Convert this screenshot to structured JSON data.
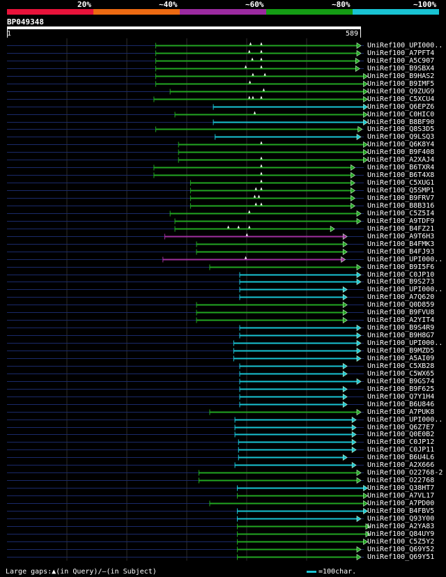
{
  "legend": {
    "segments": [
      {
        "label": "20%",
        "color": "#e8133a"
      },
      {
        "label": "~40%",
        "color": "#ec6a12"
      },
      {
        "label": "~60%",
        "color": "#9b2aa0"
      },
      {
        "label": "~80%",
        "color": "#149c14"
      },
      {
        "label": "~100%",
        "color": "#19c3d3"
      }
    ]
  },
  "query": {
    "id": "BP049348",
    "start": "1",
    "end": "589",
    "length": 589
  },
  "colors": {
    "green": "#22a622",
    "cyan": "#19c3d3",
    "purple": "#a030a0",
    "guide": "#1a2a6a",
    "grid": "#2b2b2b"
  },
  "hits": [
    {
      "name": "UniRef100_UPI000..",
      "start": 248,
      "end": 589,
      "color": "green",
      "gaps": [
        406,
        424
      ]
    },
    {
      "name": "UniRef100_A7PFT4",
      "start": 248,
      "end": 589,
      "color": "green",
      "gaps": [
        404,
        424
      ]
    },
    {
      "name": "UniRef100_A5C907",
      "start": 248,
      "end": 587,
      "color": "green",
      "gaps": [
        409,
        424
      ]
    },
    {
      "name": "UniRef100_B9SBX4",
      "start": 248,
      "end": 587,
      "color": "green",
      "gaps": [
        398,
        424
      ]
    },
    {
      "name": "UniRef100_B9HAS2",
      "start": 248,
      "end": 600,
      "color": "green",
      "gaps": [
        410,
        430
      ]
    },
    {
      "name": "UniRef100_B9IMF5",
      "start": 248,
      "end": 600,
      "color": "green",
      "gaps": [
        405
      ]
    },
    {
      "name": "UniRef100_Q9ZUG9",
      "start": 272,
      "end": 600,
      "color": "green",
      "gaps": [
        428
      ]
    },
    {
      "name": "UniRef100_C5XCU4",
      "start": 245,
      "end": 600,
      "color": "green",
      "gaps": [
        404,
        410,
        424
      ]
    },
    {
      "name": "UniRef100_Q6EPZ6",
      "start": 344,
      "end": 600,
      "color": "cyan",
      "gaps": []
    },
    {
      "name": "UniRef100_C0HIC0",
      "start": 280,
      "end": 600,
      "color": "green",
      "gaps": [
        413
      ]
    },
    {
      "name": "UniRef100_B8BF90",
      "start": 344,
      "end": 600,
      "color": "cyan",
      "gaps": []
    },
    {
      "name": "UniRef100_Q8S3D5",
      "start": 248,
      "end": 591,
      "color": "green",
      "gaps": []
    },
    {
      "name": "UniRef100_Q9LSQ3",
      "start": 347,
      "end": 589,
      "color": "cyan",
      "gaps": []
    },
    {
      "name": "UniRef100_Q6K8Y4",
      "start": 286,
      "end": 600,
      "color": "green",
      "gaps": [
        424
      ]
    },
    {
      "name": "UniRef100_B9F408",
      "start": 286,
      "end": 600,
      "color": "green",
      "gaps": []
    },
    {
      "name": "UniRef100_A2XAJ4",
      "start": 286,
      "end": 600,
      "color": "green",
      "gaps": [
        424
      ]
    },
    {
      "name": "UniRef100_B6TXR4",
      "start": 245,
      "end": 579,
      "color": "green",
      "gaps": [
        424
      ]
    },
    {
      "name": "UniRef100_B6T4X8",
      "start": 245,
      "end": 579,
      "color": "green",
      "gaps": [
        424
      ]
    },
    {
      "name": "UniRef100_C5XUG1",
      "start": 306,
      "end": 579,
      "color": "green",
      "gaps": [
        424
      ]
    },
    {
      "name": "UniRef100_Q5SMP1",
      "start": 306,
      "end": 579,
      "color": "green",
      "gaps": [
        415,
        424
      ]
    },
    {
      "name": "UniRef100_B9FRV7",
      "start": 306,
      "end": 579,
      "color": "green",
      "gaps": [
        413,
        420
      ]
    },
    {
      "name": "UniRef100_B8B316",
      "start": 306,
      "end": 579,
      "color": "green",
      "gaps": [
        415,
        424
      ]
    },
    {
      "name": "UniRef100_C5Z5I4",
      "start": 272,
      "end": 589,
      "color": "green",
      "gaps": [
        404
      ]
    },
    {
      "name": "UniRef100_A9TDF9",
      "start": 280,
      "end": 589,
      "color": "green",
      "gaps": []
    },
    {
      "name": "UniRef100_B4FZ21",
      "start": 280,
      "end": 545,
      "color": "green",
      "gaps": [
        369,
        386,
        404
      ]
    },
    {
      "name": "UniRef100_A9T6H3",
      "start": 263,
      "end": 566,
      "color": "purple",
      "gaps": [
        400
      ]
    },
    {
      "name": "UniRef100_B4FMK3",
      "start": 316,
      "end": 566,
      "color": "green",
      "gaps": []
    },
    {
      "name": "UniRef100_B4FJ93",
      "start": 316,
      "end": 566,
      "color": "green",
      "gaps": []
    },
    {
      "name": "UniRef100_UPI000..",
      "start": 260,
      "end": 563,
      "color": "purple",
      "gaps": [
        398
      ]
    },
    {
      "name": "UniRef100_B9I5F6",
      "start": 338,
      "end": 589,
      "color": "green",
      "gaps": []
    },
    {
      "name": "UniRef100_C0JP10",
      "start": 388,
      "end": 589,
      "color": "cyan",
      "gaps": []
    },
    {
      "name": "UniRef100_B9S273",
      "start": 388,
      "end": 589,
      "color": "cyan",
      "gaps": []
    },
    {
      "name": "UniRef100_UPI000..",
      "start": 388,
      "end": 566,
      "color": "cyan",
      "gaps": []
    },
    {
      "name": "UniRef100_A7Q620",
      "start": 388,
      "end": 566,
      "color": "cyan",
      "gaps": []
    },
    {
      "name": "UniRef100_Q0D859",
      "start": 316,
      "end": 566,
      "color": "green",
      "gaps": []
    },
    {
      "name": "UniRef100_B9FVU8",
      "start": 316,
      "end": 566,
      "color": "green",
      "gaps": []
    },
    {
      "name": "UniRef100_A2YIT4",
      "start": 316,
      "end": 566,
      "color": "green",
      "gaps": []
    },
    {
      "name": "UniRef100_B9S4R9",
      "start": 388,
      "end": 589,
      "color": "cyan",
      "gaps": []
    },
    {
      "name": "UniRef100_B9H8G7",
      "start": 388,
      "end": 589,
      "color": "cyan",
      "gaps": []
    },
    {
      "name": "UniRef100_UPI000..",
      "start": 378,
      "end": 589,
      "color": "cyan",
      "gaps": []
    },
    {
      "name": "UniRef100_B9MZD5",
      "start": 378,
      "end": 589,
      "color": "cyan",
      "gaps": []
    },
    {
      "name": "UniRef100_A5AI09",
      "start": 378,
      "end": 589,
      "color": "cyan",
      "gaps": []
    },
    {
      "name": "UniRef100_C5XB28",
      "start": 388,
      "end": 566,
      "color": "cyan",
      "gaps": []
    },
    {
      "name": "UniRef100_C5WX65",
      "start": 388,
      "end": 566,
      "color": "cyan",
      "gaps": []
    },
    {
      "name": "UniRef100_B9GS74",
      "start": 388,
      "end": 589,
      "color": "cyan",
      "gaps": []
    },
    {
      "name": "UniRef100_B9F625",
      "start": 388,
      "end": 566,
      "color": "cyan",
      "gaps": []
    },
    {
      "name": "UniRef100_Q7Y1H4",
      "start": 388,
      "end": 566,
      "color": "cyan",
      "gaps": []
    },
    {
      "name": "UniRef100_B6U846",
      "start": 388,
      "end": 566,
      "color": "cyan",
      "gaps": []
    },
    {
      "name": "UniRef100_A7PUK8",
      "start": 338,
      "end": 589,
      "color": "green",
      "gaps": []
    },
    {
      "name": "UniRef100_UPI000..",
      "start": 380,
      "end": 581,
      "color": "cyan",
      "gaps": []
    },
    {
      "name": "UniRef100_Q6Z7E7",
      "start": 380,
      "end": 581,
      "color": "cyan",
      "gaps": []
    },
    {
      "name": "UniRef100_Q0E0B2",
      "start": 380,
      "end": 581,
      "color": "cyan",
      "gaps": []
    },
    {
      "name": "UniRef100_C0JP12",
      "start": 386,
      "end": 581,
      "color": "cyan",
      "gaps": []
    },
    {
      "name": "UniRef100_C0JP11",
      "start": 386,
      "end": 581,
      "color": "cyan",
      "gaps": []
    },
    {
      "name": "UniRef100_B6U4L6",
      "start": 386,
      "end": 566,
      "color": "cyan",
      "gaps": []
    },
    {
      "name": "UniRef100_A2X666",
      "start": 380,
      "end": 581,
      "color": "cyan",
      "gaps": []
    },
    {
      "name": "UniRef100_O22768-2",
      "start": 320,
      "end": 589,
      "color": "green",
      "gaps": []
    },
    {
      "name": "UniRef100_O22768",
      "start": 320,
      "end": 589,
      "color": "green",
      "gaps": []
    },
    {
      "name": "UniRef100_Q38HT7",
      "start": 384,
      "end": 600,
      "color": "cyan",
      "gaps": []
    },
    {
      "name": "UniRef100_A7VL17",
      "start": 384,
      "end": 600,
      "color": "green",
      "gaps": []
    },
    {
      "name": "UniRef100_A7PD00",
      "start": 338,
      "end": 600,
      "color": "green",
      "gaps": []
    },
    {
      "name": "UniRef100_B4FBV5",
      "start": 384,
      "end": 600,
      "color": "cyan",
      "gaps": []
    },
    {
      "name": "UniRef100_Q93Y00",
      "start": 384,
      "end": 589,
      "color": "cyan",
      "gaps": []
    },
    {
      "name": "UniRef100_A2YA83",
      "start": 384,
      "end": 604,
      "color": "green",
      "gaps": []
    },
    {
      "name": "UniRef100_Q84UY9",
      "start": 384,
      "end": 604,
      "color": "green",
      "gaps": []
    },
    {
      "name": "UniRef100_C5Z5Y2",
      "start": 384,
      "end": 600,
      "color": "green",
      "gaps": []
    },
    {
      "name": "UniRef100_Q69Y52",
      "start": 384,
      "end": 589,
      "color": "green",
      "gaps": []
    },
    {
      "name": "UniRef100_Q69Y51",
      "start": 384,
      "end": 589,
      "color": "green",
      "gaps": []
    }
  ],
  "footer": {
    "gaps_text": "Large gaps:▲(in Query)/—(in Subject)",
    "scale_text": "=100char."
  }
}
